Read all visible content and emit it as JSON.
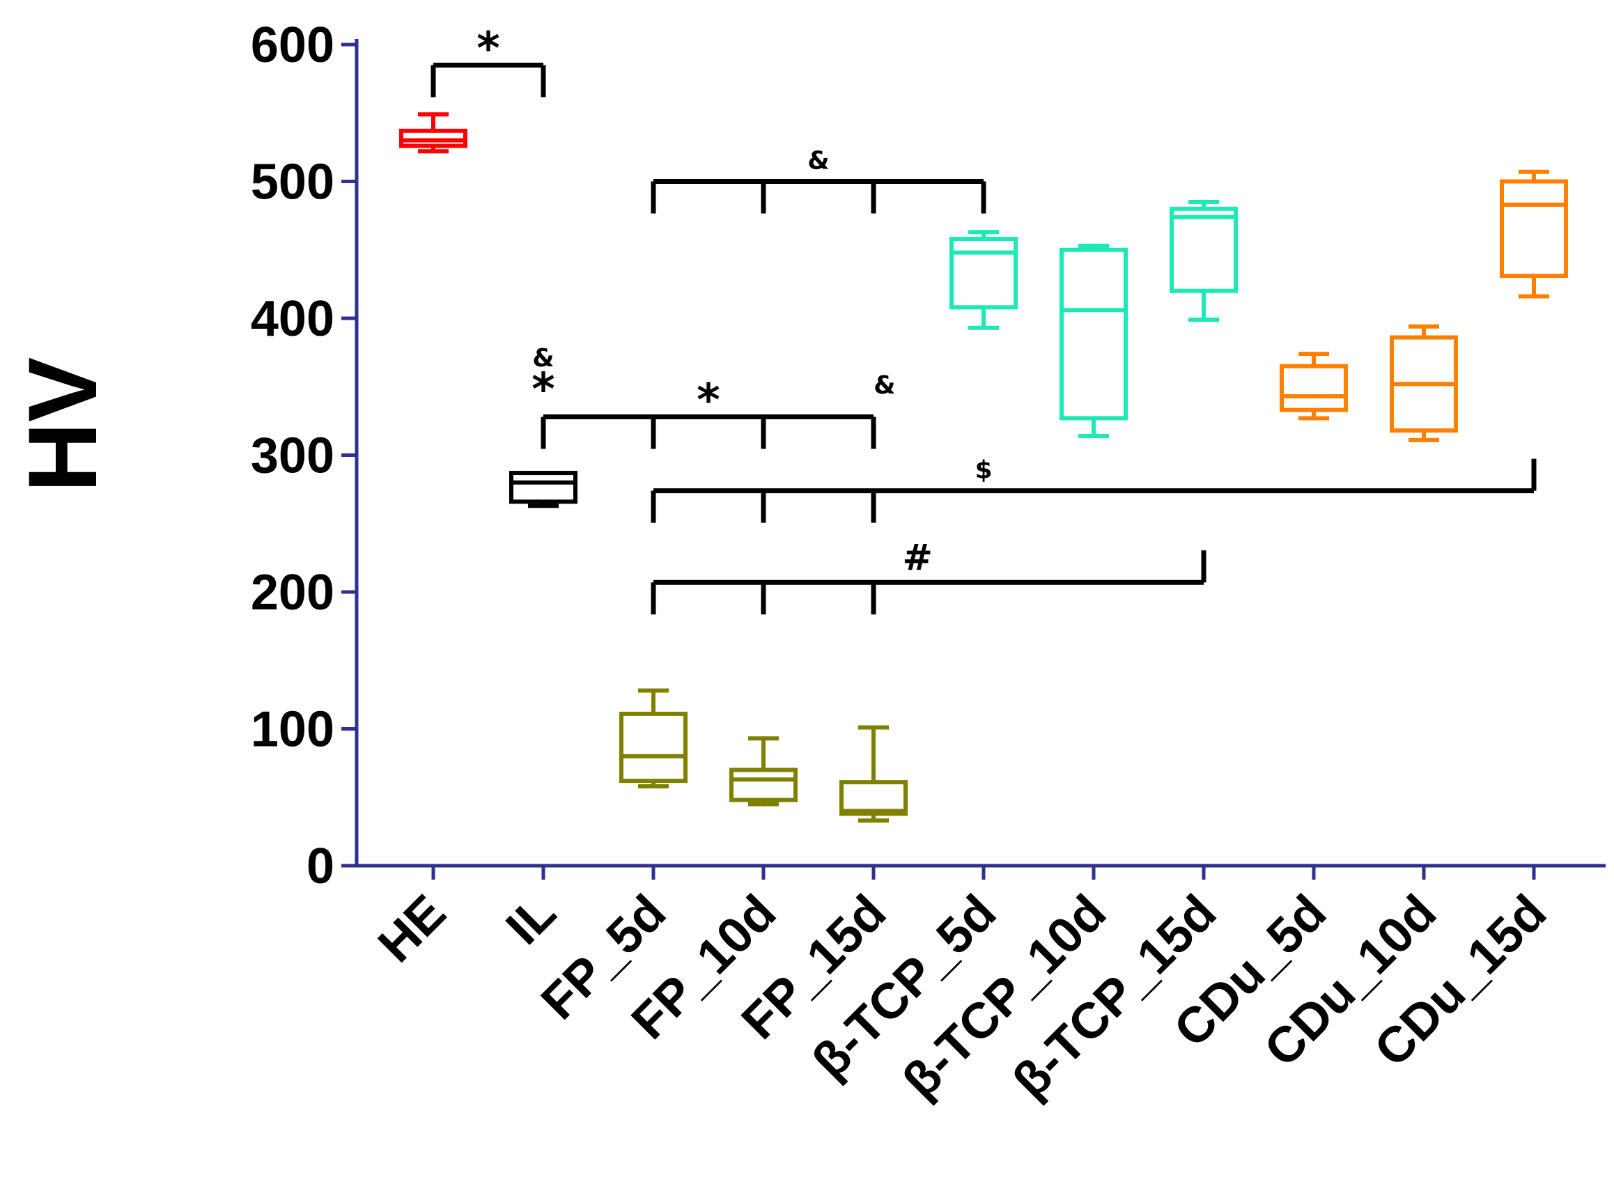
{
  "chart_data": {
    "type": "box",
    "title": "",
    "xlabel": "",
    "ylabel": "HV",
    "ylim": [
      0,
      600
    ],
    "yticks": [
      0,
      100,
      200,
      300,
      400,
      500,
      600
    ],
    "axis_color": "#2e3192",
    "categories": [
      "HE",
      "IL",
      "FP_5d",
      "FP_10d",
      "FP_15d",
      "β-TCP_5d",
      "β-TCP_10d",
      "β-TCP_15d",
      "CDu_5d",
      "CDu_10d",
      "CDu_15d"
    ],
    "boxes": [
      {
        "name": "HE",
        "min": 522,
        "q1": 526,
        "median": 530,
        "q3": 537,
        "max": 549,
        "color": "#ff0000"
      },
      {
        "name": "IL",
        "min": 263,
        "q1": 266,
        "median": 280,
        "q3": 287,
        "max": 287,
        "color": "#000000"
      },
      {
        "name": "FP_5d",
        "min": 58,
        "q1": 62,
        "median": 80,
        "q3": 111,
        "max": 128,
        "color": "#808000"
      },
      {
        "name": "FP_10d",
        "min": 45,
        "q1": 48,
        "median": 63,
        "q3": 70,
        "max": 93,
        "color": "#808000"
      },
      {
        "name": "FP_15d",
        "min": 33,
        "q1": 38,
        "median": 40,
        "q3": 61,
        "max": 101,
        "color": "#808000"
      },
      {
        "name": "β-TCP_5d",
        "min": 393,
        "q1": 408,
        "median": 448,
        "q3": 458,
        "max": 463,
        "color": "#1de9b6"
      },
      {
        "name": "β-TCP_10d",
        "min": 314,
        "q1": 327,
        "median": 406,
        "q3": 450,
        "max": 453,
        "color": "#1de9b6"
      },
      {
        "name": "β-TCP_15d",
        "min": 399,
        "q1": 420,
        "median": 474,
        "q3": 480,
        "max": 485,
        "color": "#1de9b6"
      },
      {
        "name": "CDu_5d",
        "min": 327,
        "q1": 333,
        "median": 343,
        "q3": 365,
        "max": 374,
        "color": "#ff8000"
      },
      {
        "name": "CDu_10d",
        "min": 311,
        "q1": 318,
        "median": 352,
        "q3": 386,
        "max": 394,
        "color": "#ff8000"
      },
      {
        "name": "CDu_15d",
        "min": 416,
        "q1": 431,
        "median": 483,
        "q3": 500,
        "max": 507,
        "color": "#ff8000"
      }
    ],
    "significance": [
      {
        "symbol": "*",
        "from": 0,
        "to": 1,
        "ticks": [
          0,
          1
        ],
        "y": 585,
        "label_x": 0.5,
        "size": "big"
      },
      {
        "symbol": "&",
        "from": 2,
        "to": 5,
        "ticks": [
          2,
          3,
          4,
          5
        ],
        "y": 500,
        "label_x": 3.5,
        "size": "small"
      },
      {
        "symbol": "*",
        "from": 1,
        "to": 4,
        "ticks": [
          1,
          2,
          3,
          4
        ],
        "y": 328,
        "label_x": 2.5,
        "size": "big"
      },
      {
        "symbol": "$",
        "from": 2,
        "to": 10,
        "ticks": [
          2,
          3,
          4,
          10
        ],
        "y": 274,
        "label_x": 5,
        "size": "small"
      },
      {
        "symbol": "#",
        "from": 2,
        "to": 7,
        "ticks": [
          2,
          3,
          4,
          7
        ],
        "y": 207,
        "label_x": 4.4,
        "size": "mid"
      }
    ],
    "extra_marks": [
      {
        "symbol": "&",
        "x": 1,
        "y": 365,
        "size": "small"
      },
      {
        "symbol": "*",
        "x": 1,
        "y": 337,
        "size": "big"
      },
      {
        "symbol": "&",
        "x": 4.1,
        "y": 345,
        "size": "small"
      }
    ]
  }
}
